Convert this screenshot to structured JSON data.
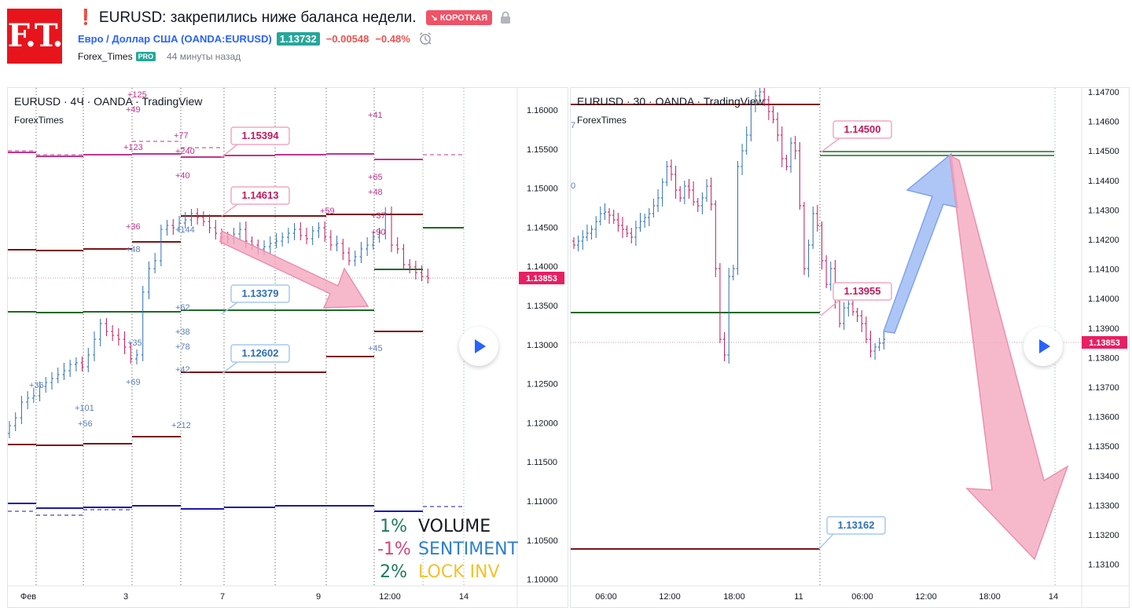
{
  "header": {
    "logo_text": "F.T.",
    "title": "❗ EURUSD: закрепились ниже баланса недели.",
    "badge": "↘ КОРОТКАЯ",
    "symbol": "Евро / Доллар США (OANDA:EURUSD)",
    "price": "1.13732",
    "change": "−0.00548",
    "change_pct": "−0.48%",
    "author": "Forex_Times",
    "author_badge": "PRO",
    "time_ago": "44 минуты назад",
    "colors": {
      "brand": "#e8141c",
      "short": "#f05266",
      "up": "#26a69a",
      "down": "#ef5350",
      "link": "#2962ff"
    }
  },
  "left_chart": {
    "title": "EURUSD · 4Ч · OANDA · TradingView",
    "subtitle": "ForexTimes",
    "y_ticks": [
      "1.16000",
      "1.15500",
      "1.15000",
      "1.14500",
      "1.14000",
      "1.13500",
      "1.13000",
      "1.12500",
      "1.12000",
      "1.11500",
      "1.11000",
      "1.10500",
      "1.10000"
    ],
    "x_ticks": [
      "Фев",
      "3",
      "7",
      "9",
      "12:00",
      "14"
    ],
    "current_price": "1.13853",
    "callouts": [
      "1.15394",
      "1.14613",
      "1.13379",
      "1.12602"
    ],
    "volume_labels": [
      "+125",
      "+49",
      "+77",
      "+123",
      "+240",
      "+40",
      "+36",
      "+48",
      "+144",
      "+62",
      "+38",
      "+78",
      "+42",
      "+35",
      "+69",
      "+36",
      "+101",
      "+56",
      "+212",
      "+41",
      "+65",
      "+48",
      "+59",
      "+37",
      "+90",
      "+45"
    ],
    "legend": [
      {
        "pct": "1%",
        "pct_color": "#1e7a5a",
        "label": "VOLUME",
        "label_color": "#131722"
      },
      {
        "pct": "-1%",
        "pct_color": "#d6457a",
        "label": "SENTIMENT",
        "label_color": "#2d7fcc"
      },
      {
        "pct": "2%",
        "pct_color": "#1e7a5a",
        "label": "LOCK INV",
        "label_color": "#f2c12e"
      }
    ]
  },
  "right_chart": {
    "title": "EURUSD · 30 · OANDA · TradingView",
    "subtitle": "ForexTimes",
    "y_ticks": [
      "1.14700",
      "1.14600",
      "1.14500",
      "1.14400",
      "1.14300",
      "1.14200",
      "1.14100",
      "1.14000",
      "1.13900",
      "1.13800",
      "1.13700",
      "1.13600",
      "1.13500",
      "1.13400",
      "1.13300",
      "1.13200",
      "1.13100"
    ],
    "x_ticks": [
      "06:00",
      "12:00",
      "18:00",
      "11",
      "06:00",
      "12:00",
      "18:00",
      "14"
    ],
    "current_price": "1.13853",
    "callouts": [
      "1.14500",
      "1.13955",
      "1.13162"
    ],
    "edge_labels": [
      "7",
      "0"
    ]
  }
}
